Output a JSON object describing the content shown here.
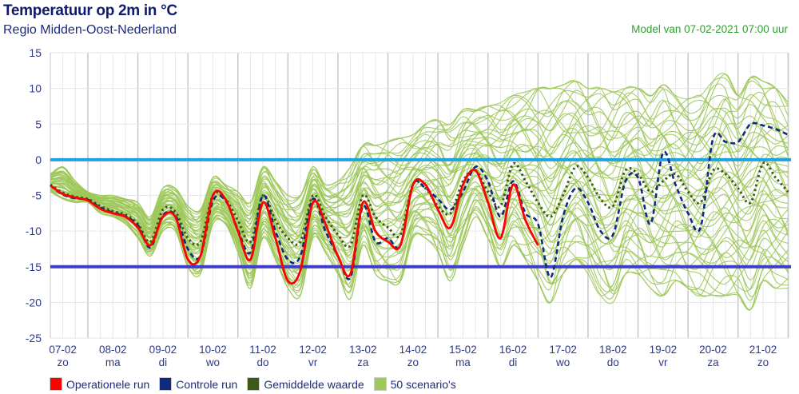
{
  "header": {
    "title": "Temperatuur op 2m in °C",
    "subtitle": "Regio Midden-Oost-Nederland",
    "model_run": "Model van 07-02-2021 07:00 uur"
  },
  "chart_data": {
    "type": "line",
    "title": "Temperatuur op 2m in °C",
    "ylim": [
      -25,
      15
    ],
    "y_ticks": [
      "15",
      "10",
      "5",
      "0",
      "-5",
      "-10",
      "-15",
      "-20",
      "-25"
    ],
    "x_start": "07-02 06:00",
    "x_step_hours": 6,
    "x_ticks": [
      {
        "date": "07-02",
        "day": "zo"
      },
      {
        "date": "08-02",
        "day": "ma"
      },
      {
        "date": "09-02",
        "day": "di"
      },
      {
        "date": "10-02",
        "day": "wo"
      },
      {
        "date": "11-02",
        "day": "do"
      },
      {
        "date": "12-02",
        "day": "vr"
      },
      {
        "date": "13-02",
        "day": "za"
      },
      {
        "date": "14-02",
        "day": "zo"
      },
      {
        "date": "15-02",
        "day": "ma"
      },
      {
        "date": "16-02",
        "day": "di"
      },
      {
        "date": "17-02",
        "day": "wo"
      },
      {
        "date": "18-02",
        "day": "do"
      },
      {
        "date": "19-02",
        "day": "vr"
      },
      {
        "date": "20-02",
        "day": "za"
      },
      {
        "date": "21-02",
        "day": "zo"
      }
    ],
    "grid": true,
    "reference_lines": [
      {
        "value": 0,
        "color": "#1fa3e0"
      },
      {
        "value": -15,
        "color": "#3d3dc8"
      }
    ],
    "legend_position": "bottom-left",
    "series": [
      {
        "name": "Operationele run",
        "color": "#ff0000",
        "style": "solid",
        "values": [
          -3.6,
          -4.8,
          -5.3,
          -5.7,
          -6.9,
          -7.5,
          -8.0,
          -9.5,
          -12.0,
          -8.0,
          -8.0,
          -14.0,
          -13.5,
          -5.0,
          -5.5,
          -10.0,
          -14.0,
          -6.0,
          -11.0,
          -17.0,
          -15.5,
          -6.0,
          -9.0,
          -13.5,
          -16.0,
          -6.0,
          -10.0,
          -11.5,
          -12.0,
          -3.5,
          -3.5,
          -7.0,
          -9.5,
          -3.5,
          -1.5,
          -6.0,
          -11.0,
          -3.5,
          -8.5,
          -12.0
        ]
      },
      {
        "name": "Controle run",
        "color": "#0f2a80",
        "style": "dashed",
        "values": [
          -3.6,
          -4.9,
          -5.4,
          -5.6,
          -6.7,
          -7.4,
          -7.9,
          -9.2,
          -12.3,
          -7.8,
          -7.8,
          -12.5,
          -13.5,
          -5.8,
          -5.7,
          -9.8,
          -13.0,
          -5.0,
          -10.0,
          -14.0,
          -13.5,
          -5.5,
          -10.0,
          -13.5,
          -16.5,
          -6.5,
          -11.5,
          -11.0,
          -12.0,
          -3.5,
          -4.0,
          -5.5,
          -7.0,
          -4.5,
          -1.0,
          -3.0,
          -8.0,
          -3.0,
          -7.5,
          -9.0,
          -16.5,
          -8.0,
          -4.0,
          -6.0,
          -10.0,
          -10.5,
          -3.0,
          -2.5,
          -9.0,
          1.0,
          -3.5,
          -7.5,
          -9.5,
          3.0,
          2.5,
          2.5,
          5.0,
          4.8,
          4.3,
          3.5
        ]
      },
      {
        "name": "Gemiddelde waarde",
        "color": "#3b5a1a",
        "style": "dotted",
        "values": [
          -3.5,
          -4.6,
          -5.2,
          -5.5,
          -6.5,
          -7.2,
          -7.7,
          -9.0,
          -11.5,
          -7.0,
          -7.3,
          -11.0,
          -11.5,
          -5.0,
          -5.5,
          -8.5,
          -11.5,
          -5.0,
          -8.5,
          -11.0,
          -11.5,
          -5.0,
          -8.0,
          -10.5,
          -12.0,
          -5.0,
          -8.0,
          -9.5,
          -10.5,
          -3.5,
          -4.0,
          -6.5,
          -7.5,
          -3.0,
          -1.5,
          -4.5,
          -6.5,
          -0.6,
          -3.0,
          -6.0,
          -8.0,
          -5.0,
          -1.0,
          -2.5,
          -5.5,
          -6.5,
          -1.5,
          -2.0,
          -4.5,
          -3.0,
          -2.0,
          -4.5,
          -6.0,
          -1.5,
          -2.0,
          -4.0,
          -6.0,
          -0.5,
          -2.5,
          -4.5
        ]
      },
      {
        "name": "50 scenario's",
        "color": "#9dc85a",
        "style": "ensemble",
        "count": 50,
        "min": [
          -4.5,
          -5.5,
          -6,
          -6,
          -7.5,
          -8,
          -9,
          -11,
          -13.5,
          -10,
          -10,
          -15,
          -16,
          -9,
          -9,
          -13,
          -18,
          -11,
          -14,
          -18,
          -19,
          -11,
          -13,
          -16,
          -19.5,
          -12,
          -16,
          -17,
          -17,
          -11,
          -11,
          -13,
          -17,
          -12,
          -8,
          -11,
          -15,
          -12,
          -14,
          -17,
          -20,
          -16,
          -14,
          -16,
          -19,
          -20,
          -16,
          -16,
          -18,
          -19,
          -17,
          -18,
          -19,
          -19,
          -19,
          -19,
          -21,
          -17,
          -18,
          -18
        ],
        "max": [
          -2,
          -1,
          -3,
          -4.5,
          -5,
          -5,
          -5.5,
          -6,
          -8,
          -4,
          -4,
          -6.5,
          -7,
          -2.5,
          -3.5,
          -4.5,
          -6,
          -1,
          -3,
          -5,
          -5,
          -1,
          -3.5,
          -3,
          -1,
          2,
          2,
          2.5,
          3,
          3.5,
          5,
          5.5,
          5,
          7,
          7,
          7.5,
          8,
          9,
          9.5,
          10,
          10,
          10.5,
          11,
          10,
          10,
          9.5,
          10,
          10,
          9,
          10.5,
          9,
          8.5,
          9,
          11,
          12,
          9,
          11.5,
          11,
          10,
          8
        ]
      }
    ]
  },
  "legend": {
    "items": [
      {
        "label": "Operationele run",
        "color": "#ff0000"
      },
      {
        "label": "Controle run",
        "color": "#0f2a80"
      },
      {
        "label": "Gemiddelde waarde",
        "color": "#3b5a1a"
      },
      {
        "label": "50 scenario's",
        "color": "#9dc85a"
      }
    ]
  }
}
